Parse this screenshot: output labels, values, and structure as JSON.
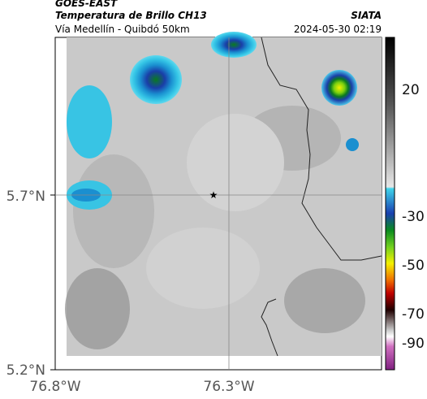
{
  "header": {
    "title": "GOES-EAST",
    "subtitle": "Temperatura de Brillo CH13",
    "location": "Vía Medellín - Quibdó 50km",
    "source": "SIATA",
    "datetime": "2024-05-30 02:19"
  },
  "axes": {
    "lat_ticks": [
      "5.7°N",
      "5.2°N"
    ],
    "lon_ticks": [
      "76.8°W",
      "76.3°W"
    ]
  },
  "colorbar": {
    "labels": [
      "20",
      "-30",
      "-50",
      "-70",
      "-90"
    ]
  }
}
